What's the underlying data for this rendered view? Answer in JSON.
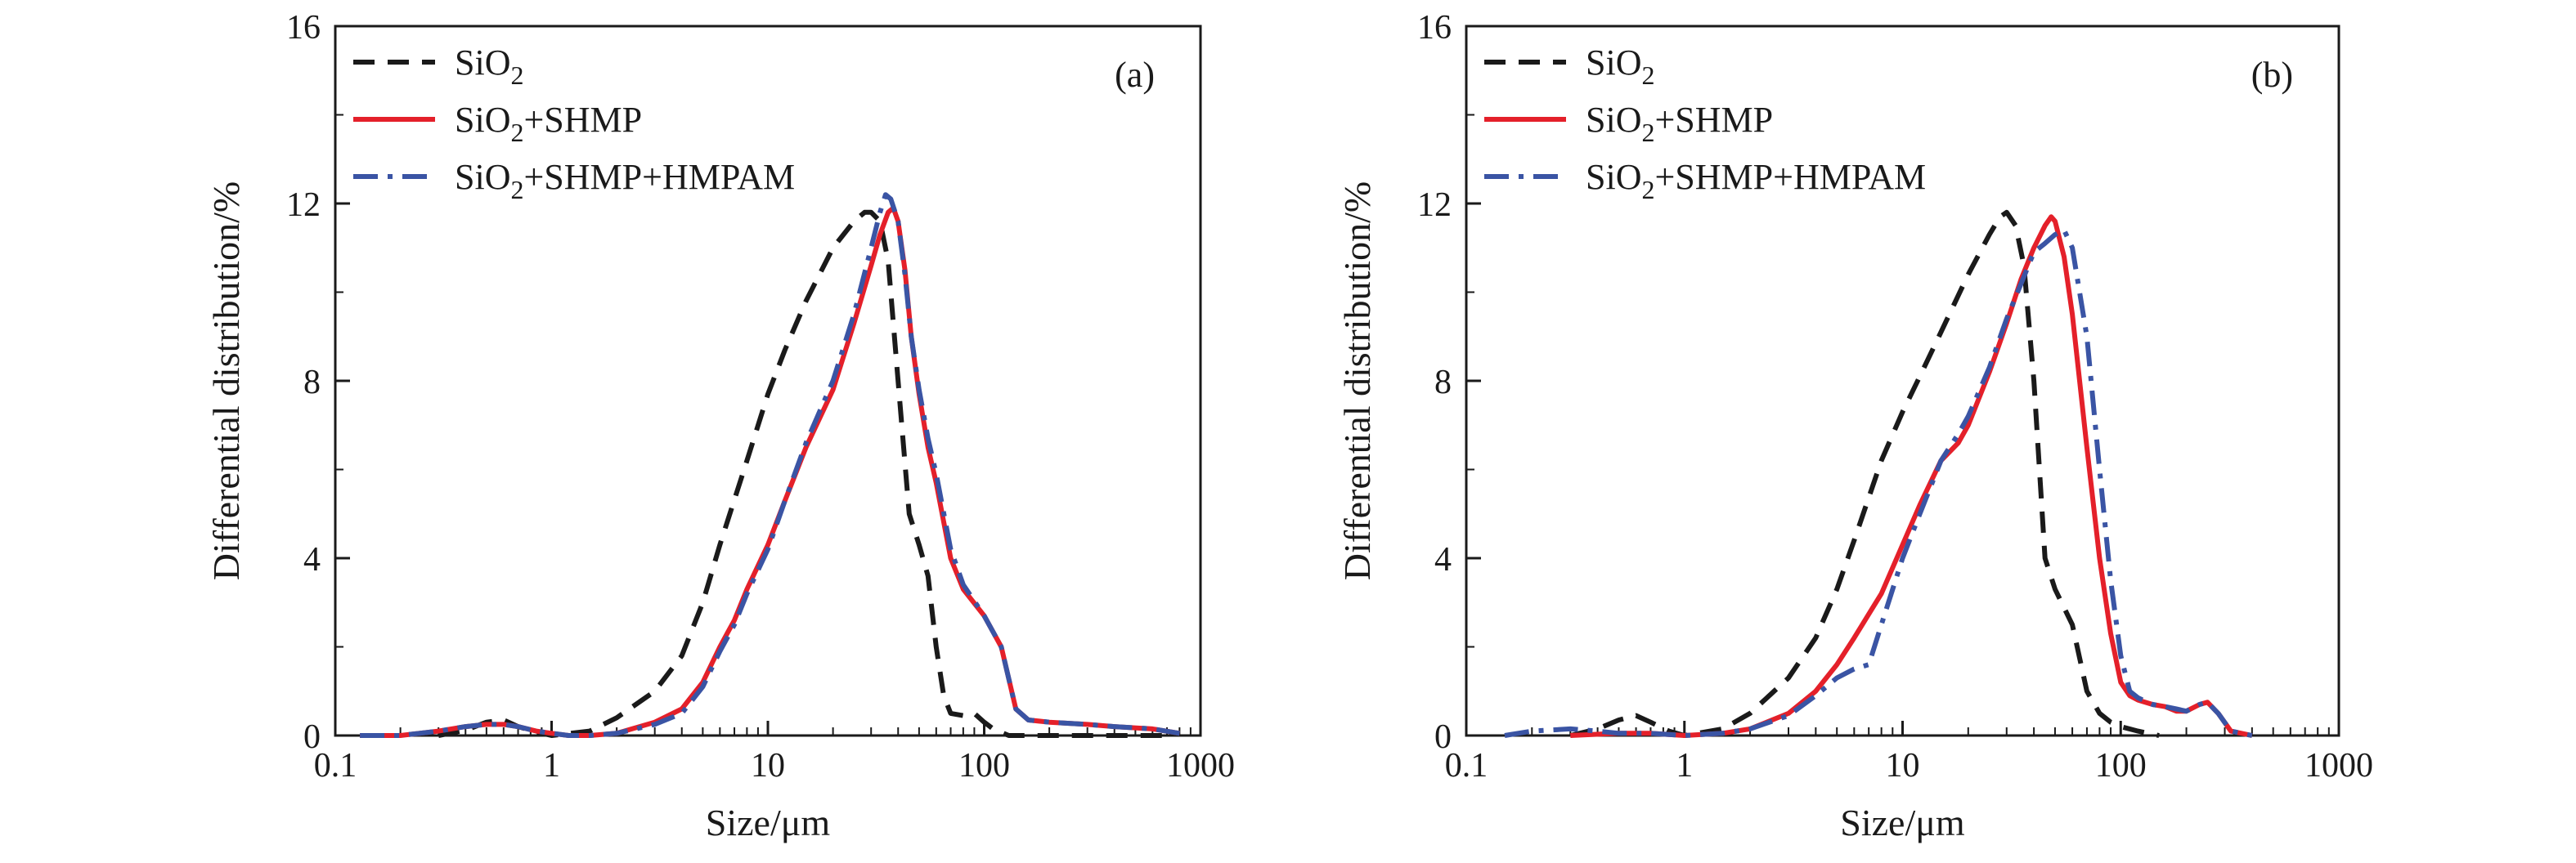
{
  "chart_data": [
    {
      "type": "line",
      "panel_label": "(a)",
      "xlabel": "Size/μm",
      "ylabel": "Differential distribution/%",
      "x_scale": "log",
      "xlim": [
        0.1,
        1000
      ],
      "ylim": [
        0,
        16
      ],
      "x_ticks": [
        0.1,
        1,
        10,
        100,
        1000
      ],
      "x_tick_labels": [
        "0.1",
        "1",
        "10",
        "100",
        "1000"
      ],
      "y_ticks": [
        0,
        4,
        8,
        12,
        16
      ],
      "y_tick_labels": [
        "0",
        "4",
        "8",
        "12",
        "16"
      ],
      "grid": false,
      "legend_position": "top-left",
      "series": [
        {
          "name": "SiO2",
          "legend_main": "SiO",
          "legend_sub": "2",
          "legend_rest": "",
          "color": "#1a1a1a",
          "dash": "dashed",
          "x": [
            0.3,
            0.4,
            0.5,
            0.6,
            0.7,
            0.85,
            1,
            1.5,
            2,
            3,
            4,
            5,
            6,
            8,
            10,
            12,
            15,
            20,
            25,
            28,
            30,
            33,
            36,
            40,
            45,
            50,
            55,
            60,
            65,
            70,
            80,
            90,
            100,
            110,
            130,
            200,
            400,
            700
          ],
          "y": [
            0,
            0.12,
            0.3,
            0.35,
            0.2,
            0.08,
            0,
            0.1,
            0.4,
            1.0,
            1.8,
            3.0,
            4.3,
            6.2,
            7.7,
            8.7,
            9.8,
            11.0,
            11.6,
            11.8,
            11.8,
            11.6,
            10.7,
            8.0,
            5.0,
            4.3,
            3.6,
            2.0,
            0.9,
            0.5,
            0.45,
            0.5,
            0.3,
            0.15,
            0,
            0,
            0,
            0
          ]
        },
        {
          "name": "SiO2+SHMP",
          "legend_main": "SiO",
          "legend_sub": "2",
          "legend_rest": "+SHMP",
          "color": "#e4202a",
          "dash": "solid",
          "x": [
            0.13,
            0.2,
            0.3,
            0.4,
            0.5,
            0.6,
            0.7,
            0.85,
            1,
            1.2,
            1.5,
            2,
            3,
            4,
            5,
            6,
            7,
            8,
            10,
            12,
            15,
            20,
            25,
            30,
            33,
            36,
            38,
            40,
            43,
            46,
            50,
            55,
            60,
            70,
            80,
            100,
            120,
            140,
            160,
            200,
            300,
            400,
            600,
            800
          ],
          "y": [
            0,
            0,
            0.1,
            0.2,
            0.25,
            0.25,
            0.2,
            0.1,
            0.05,
            0,
            0,
            0.05,
            0.3,
            0.6,
            1.2,
            2.0,
            2.6,
            3.3,
            4.3,
            5.3,
            6.5,
            7.8,
            9.3,
            10.6,
            11.3,
            11.8,
            11.9,
            11.6,
            10.5,
            9.0,
            7.7,
            6.5,
            5.7,
            4.0,
            3.3,
            2.7,
            2.0,
            0.6,
            0.35,
            0.3,
            0.25,
            0.2,
            0.15,
            0.05
          ]
        },
        {
          "name": "SiO2+SHMP+HMPAM",
          "legend_main": "SiO",
          "legend_sub": "2",
          "legend_rest": "+SHMP+HMPAM",
          "color": "#3a54a4",
          "dash": "dashdot",
          "x": [
            0.13,
            0.2,
            0.3,
            0.4,
            0.5,
            0.6,
            0.7,
            0.85,
            1,
            1.2,
            1.5,
            2,
            3,
            4,
            5,
            6,
            7,
            8,
            10,
            12,
            15,
            20,
            25,
            30,
            33,
            35,
            37,
            40,
            43,
            46,
            50,
            55,
            60,
            70,
            80,
            100,
            120,
            140,
            160,
            200,
            300,
            400,
            600,
            800
          ],
          "y": [
            0,
            0,
            0.1,
            0.2,
            0.25,
            0.25,
            0.2,
            0.1,
            0.05,
            0,
            0,
            0.05,
            0.25,
            0.5,
            1.1,
            1.9,
            2.5,
            3.2,
            4.2,
            5.3,
            6.6,
            8.0,
            9.5,
            11.0,
            11.8,
            12.2,
            12.1,
            11.6,
            10.4,
            9.0,
            7.8,
            6.7,
            5.9,
            4.2,
            3.4,
            2.7,
            2.0,
            0.6,
            0.35,
            0.3,
            0.25,
            0.2,
            0.15,
            0.05
          ]
        }
      ]
    },
    {
      "type": "line",
      "panel_label": "(b)",
      "xlabel": "Size/μm",
      "ylabel": "Differential distribution/%",
      "x_scale": "log",
      "xlim": [
        0.1,
        1000
      ],
      "ylim": [
        0,
        16
      ],
      "x_ticks": [
        0.1,
        1,
        10,
        100,
        1000
      ],
      "x_tick_labels": [
        "0.1",
        "1",
        "10",
        "100",
        "1000"
      ],
      "y_ticks": [
        0,
        4,
        8,
        12,
        16
      ],
      "y_tick_labels": [
        "0",
        "4",
        "8",
        "12",
        "16"
      ],
      "grid": false,
      "legend_position": "top-left",
      "series": [
        {
          "name": "SiO2",
          "legend_main": "SiO",
          "legend_sub": "2",
          "legend_rest": "",
          "color": "#1a1a1a",
          "dash": "dashed",
          "x": [
            0.3,
            0.4,
            0.5,
            0.6,
            0.7,
            0.85,
            1,
            1.5,
            2,
            3,
            4,
            5,
            6,
            8,
            10,
            12,
            15,
            20,
            25,
            28,
            30,
            33,
            36,
            40,
            45,
            50,
            60,
            70,
            80,
            90,
            100,
            120,
            150
          ],
          "y": [
            0,
            0.15,
            0.35,
            0.45,
            0.3,
            0.1,
            0,
            0.15,
            0.5,
            1.3,
            2.2,
            3.3,
            4.4,
            6.2,
            7.3,
            8.1,
            9.1,
            10.4,
            11.3,
            11.7,
            11.8,
            11.5,
            10.6,
            8.0,
            4.0,
            3.3,
            2.5,
            1.0,
            0.5,
            0.3,
            0.2,
            0.1,
            0
          ]
        },
        {
          "name": "SiO2+SHMP",
          "legend_main": "SiO",
          "legend_sub": "2",
          "legend_rest": "+SHMP",
          "color": "#e4202a",
          "dash": "solid",
          "x": [
            0.3,
            0.5,
            0.7,
            1,
            1.5,
            2,
            3,
            4,
            5,
            6,
            8,
            10,
            12,
            15,
            18,
            20,
            25,
            30,
            35,
            40,
            45,
            48,
            50,
            55,
            60,
            70,
            80,
            90,
            100,
            110,
            120,
            140,
            160,
            180,
            200,
            230,
            250,
            280,
            320,
            400
          ],
          "y": [
            0,
            0.05,
            0.05,
            0,
            0.05,
            0.15,
            0.5,
            1.0,
            1.6,
            2.2,
            3.2,
            4.3,
            5.2,
            6.2,
            6.6,
            7.0,
            8.2,
            9.3,
            10.3,
            11.0,
            11.5,
            11.7,
            11.6,
            10.8,
            9.5,
            6.5,
            4.0,
            2.3,
            1.2,
            0.9,
            0.8,
            0.7,
            0.65,
            0.55,
            0.55,
            0.7,
            0.75,
            0.5,
            0.1,
            0
          ]
        },
        {
          "name": "SiO2+SHMP+HMPAM",
          "legend_main": "SiO",
          "legend_sub": "2",
          "legend_rest": "+SHMP+HMPAM",
          "color": "#3a54a4",
          "dash": "dashdot",
          "x": [
            0.15,
            0.2,
            0.3,
            0.4,
            0.5,
            0.7,
            1,
            1.5,
            2,
            3,
            4,
            5,
            6,
            7,
            8,
            10,
            12,
            15,
            18,
            20,
            25,
            30,
            35,
            40,
            45,
            50,
            55,
            60,
            70,
            80,
            90,
            100,
            110,
            120,
            140,
            160,
            180,
            200,
            230,
            250,
            280,
            320,
            400
          ],
          "y": [
            0,
            0.1,
            0.15,
            0.1,
            0.05,
            0.05,
            0,
            0.05,
            0.15,
            0.45,
            0.9,
            1.3,
            1.5,
            1.6,
            2.5,
            4.0,
            5.0,
            6.2,
            6.8,
            7.2,
            8.3,
            9.4,
            10.2,
            10.9,
            11.1,
            11.3,
            11.4,
            11.0,
            9.0,
            6.0,
            3.5,
            1.8,
            1.0,
            0.85,
            0.7,
            0.65,
            0.6,
            0.55,
            0.7,
            0.75,
            0.5,
            0.1,
            0
          ]
        }
      ]
    }
  ]
}
